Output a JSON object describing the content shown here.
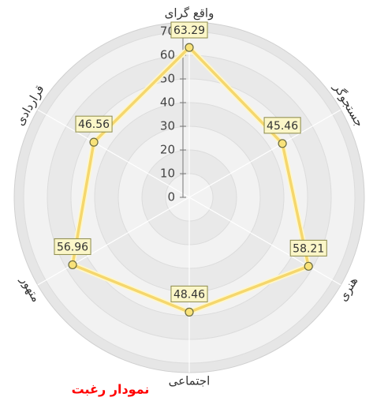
{
  "chart_data": {
    "type": "radar",
    "title": "نمودار رغبت",
    "categories": [
      "واقع گرای",
      "جستجوگر",
      "هنری",
      "اجتماعی",
      "متهور",
      "قراردادی"
    ],
    "series": [
      {
        "name": null,
        "color": "#f5d76e",
        "values": [
          63.29,
          45.46,
          58.21,
          48.46,
          56.96,
          46.56
        ]
      }
    ],
    "ylim": [
      0,
      70
    ],
    "yticks": [
      0,
      10,
      20,
      30,
      40,
      50,
      60,
      70
    ],
    "grid": true
  }
}
